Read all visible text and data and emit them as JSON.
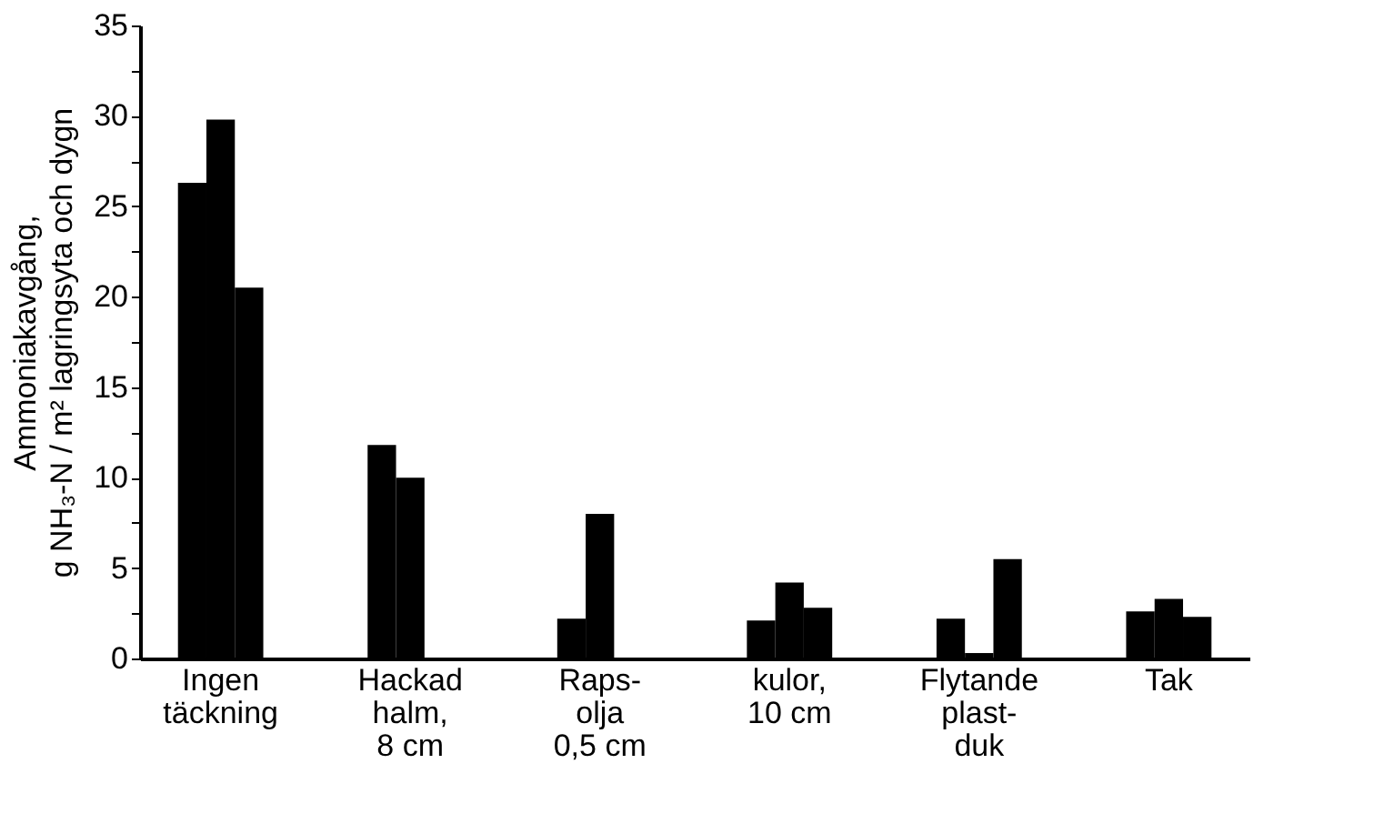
{
  "chart_data": {
    "type": "bar",
    "ylabel": "Ammoniakavgång,\ng NH₃-N / m² lagringsyta och dygn",
    "categories": [
      "Ingen\ntäckning",
      "Hackad\nhalm,\n8 cm",
      "Raps-\nolja\n0,5 cm",
      "kulor,\n10 cm",
      "Flytande\nplast-\nduk",
      "Tak"
    ],
    "series": [
      {
        "color": "#000000",
        "values": [
          26.3,
          11.8,
          2.2,
          2.1,
          2.2,
          2.6
        ]
      },
      {
        "color": "#000000",
        "values": [
          29.8,
          10.0,
          8.0,
          4.2,
          0.3,
          3.3
        ]
      },
      {
        "color": "#000000",
        "values": [
          20.5,
          null,
          null,
          2.8,
          5.5,
          2.3
        ]
      }
    ],
    "ylim": [
      0,
      35
    ],
    "yticks": [
      0,
      {
        "value": 2.5,
        "label": null
      },
      5,
      {
        "value": 7.5,
        "label": null
      },
      10,
      {
        "value": 12.5,
        "label": null
      },
      15,
      {
        "value": 17.5,
        "label": null
      },
      20,
      {
        "value": 22.5,
        "label": null
      },
      25,
      {
        "value": 27.5,
        "label": null
      },
      30,
      {
        "value": 32.5,
        "label": null
      },
      35
    ],
    "grid": false
  }
}
